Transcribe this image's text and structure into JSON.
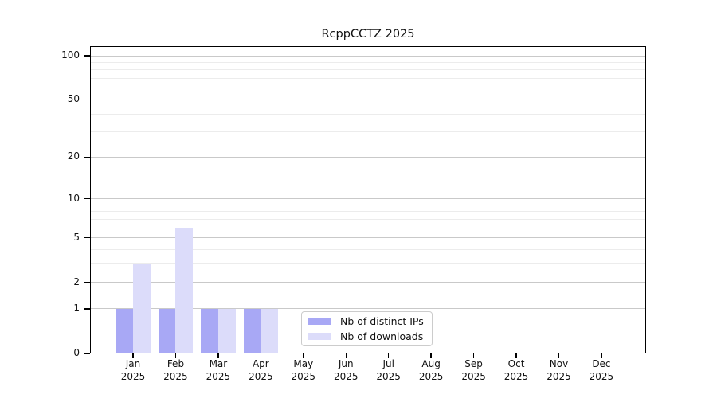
{
  "chart_data": {
    "type": "bar",
    "title": "RcppCCTZ 2025",
    "xlabel": "",
    "ylabel": "",
    "categories": [
      "Jan 2025",
      "Feb 2025",
      "Mar 2025",
      "Apr 2025",
      "May 2025",
      "Jun 2025",
      "Jul 2025",
      "Aug 2025",
      "Sep 2025",
      "Oct 2025",
      "Nov 2025",
      "Dec 2025"
    ],
    "months": [
      "Jan",
      "Feb",
      "Mar",
      "Apr",
      "May",
      "Jun",
      "Jul",
      "Aug",
      "Sep",
      "Oct",
      "Nov",
      "Dec"
    ],
    "year": "2025",
    "series": [
      {
        "name": "Nb of distinct IPs",
        "color": "#a8a8f5",
        "values": [
          1,
          1,
          1,
          1,
          0,
          0,
          0,
          0,
          0,
          0,
          0,
          0
        ]
      },
      {
        "name": "Nb of downloads",
        "color": "#dcdcfa",
        "values": [
          3,
          6,
          1,
          1,
          0,
          0,
          0,
          0,
          0,
          0,
          0,
          0
        ]
      }
    ],
    "y_axis": {
      "scale": "log1p",
      "tick_labels": [
        0,
        1,
        2,
        5,
        10,
        20,
        50,
        100
      ],
      "major_gridlines": [
        1,
        2,
        5,
        10,
        20,
        50,
        100
      ],
      "minor_gridlines": [
        3,
        4,
        6,
        7,
        8,
        9,
        30,
        40,
        60,
        70,
        80,
        90
      ],
      "ylim": [
        0,
        100
      ],
      "grid": true
    },
    "legend": {
      "position": "inside-bottom-center",
      "entries": [
        "Nb of distinct IPs",
        "Nb of downloads"
      ]
    }
  },
  "colors": {
    "background": "#ffffff",
    "axis": "#000000",
    "major_grid": "#c9c9c9",
    "minor_grid": "#ececec",
    "bar_distinct_ips": "#a8a8f5",
    "bar_downloads": "#dcdcfa"
  }
}
